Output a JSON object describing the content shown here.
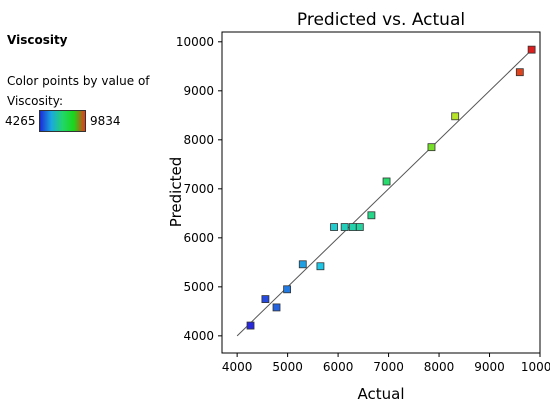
{
  "sidebar": {
    "response_title": "Viscosity",
    "colorbar_label": "Color points by value of Viscosity:",
    "colorbar_min": "4265",
    "colorbar_max": "9834",
    "colorbar_stops": [
      "#1a2bd6",
      "#1aa8e0",
      "#22d66a",
      "#1ad61a",
      "#e63a1a"
    ]
  },
  "chart_data": {
    "type": "scatter",
    "title": "Predicted vs. Actual",
    "xlabel": "Actual",
    "ylabel": "Predicted",
    "xlim": [
      3700,
      10000
    ],
    "ylim": [
      3650,
      10200
    ],
    "xticks": [
      4000,
      5000,
      6000,
      7000,
      8000,
      9000,
      10000
    ],
    "yticks": [
      4000,
      5000,
      6000,
      7000,
      8000,
      9000,
      10000
    ],
    "reference_line": {
      "from": [
        4000,
        4000
      ],
      "to": [
        9900,
        9900
      ]
    },
    "points": [
      {
        "x": 4265,
        "y": 4210
      },
      {
        "x": 4560,
        "y": 4750
      },
      {
        "x": 4780,
        "y": 4580
      },
      {
        "x": 4990,
        "y": 4950
      },
      {
        "x": 5300,
        "y": 5460
      },
      {
        "x": 5650,
        "y": 5420
      },
      {
        "x": 5920,
        "y": 6220
      },
      {
        "x": 6130,
        "y": 6220
      },
      {
        "x": 6290,
        "y": 6220
      },
      {
        "x": 6430,
        "y": 6220
      },
      {
        "x": 6660,
        "y": 6460
      },
      {
        "x": 6960,
        "y": 7150
      },
      {
        "x": 7850,
        "y": 7850
      },
      {
        "x": 8320,
        "y": 8480
      },
      {
        "x": 9600,
        "y": 9380
      },
      {
        "x": 9834,
        "y": 9840
      }
    ]
  }
}
